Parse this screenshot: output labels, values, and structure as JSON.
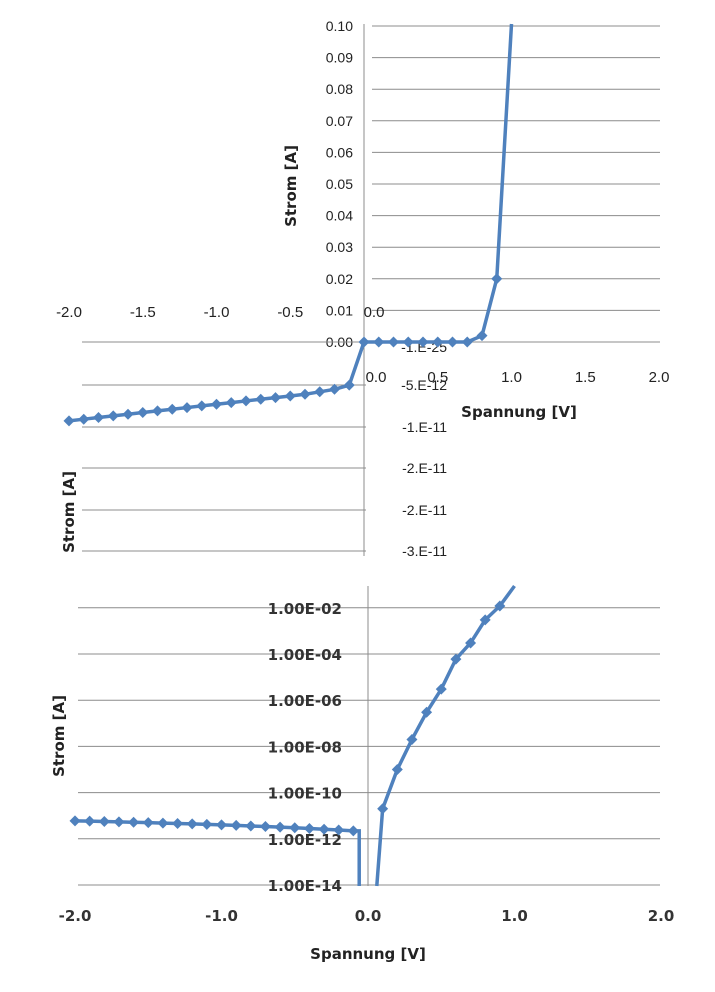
{
  "chart_data": [
    {
      "type": "line",
      "panel": "linear",
      "xlabel": "Spannung [V]",
      "ylabel_upper": "Strom [A]",
      "ylabel_lower": "Strom [A]",
      "xlim": [
        -2.0,
        2.0
      ],
      "ylim_upper": [
        0.0,
        0.1
      ],
      "x_tick_labels": [
        "-2.0",
        "-1.5",
        "-1.0",
        "-0.5",
        "0.0",
        "0.5",
        "1.0",
        "1.5",
        "2.0"
      ],
      "y_tick_labels_upper": [
        "0.00",
        "0.01",
        "0.02",
        "0.03",
        "0.04",
        "0.05",
        "0.06",
        "0.07",
        "0.08",
        "0.09",
        "0.10"
      ],
      "y_tick_labels_lower": [
        "-1.E-25",
        "-5.E-12",
        "-1.E-11",
        "-2.E-11",
        "-2.E-11",
        "-3.E-11"
      ],
      "grid": true,
      "color": "#4F81BD",
      "series": [
        {
          "x": [
            0.0,
            0.1,
            0.2,
            0.3,
            0.4,
            0.5,
            0.6,
            0.7,
            0.8,
            0.9,
            1.0
          ],
          "y": [
            0.0,
            0.0,
            0.0,
            0.0,
            0.0,
            0.0,
            0.0,
            0.0,
            0.002,
            0.02,
            0.15
          ]
        },
        {
          "x": [
            -2.0,
            -1.9,
            -1.8,
            -1.7,
            -1.6,
            -1.5,
            -1.4,
            -1.3,
            -1.2,
            -1.1,
            -1.0,
            -0.9,
            -0.8,
            -0.7,
            -0.6,
            -0.5,
            -0.4,
            -0.3,
            -0.2,
            -0.1,
            0.0
          ],
          "y": [
            -9.5e-12,
            -9.3e-12,
            -9.1e-12,
            -8.9e-12,
            -8.7e-12,
            -8.5e-12,
            -8.3e-12,
            -8.1e-12,
            -7.9e-12,
            -7.7e-12,
            -7.5e-12,
            -7.3e-12,
            -7.1e-12,
            -6.9e-12,
            -6.7e-12,
            -6.5e-12,
            -6.3e-12,
            -6e-12,
            -5.7e-12,
            -5.2e-12,
            0.0
          ]
        }
      ]
    },
    {
      "type": "line",
      "panel": "log",
      "xlabel": "Spannung [V]",
      "ylabel": "Strom [A]",
      "xlim": [
        -2.0,
        2.0
      ],
      "y_scale": "log",
      "ylim": [
        1e-14,
        0.1
      ],
      "x_tick_labels": [
        "-2.0",
        "-1.0",
        "0.0",
        "1.0",
        "2.0"
      ],
      "y_tick_labels": [
        "1.00E-14",
        "1.00E-12",
        "1.00E-10",
        "1.00E-08",
        "1.00E-06",
        "1.00E-04",
        "1.00E-02"
      ],
      "grid": true,
      "color": "#4F81BD",
      "series": [
        {
          "x": [
            -2.0,
            -1.9,
            -1.8,
            -1.7,
            -1.6,
            -1.5,
            -1.4,
            -1.3,
            -1.2,
            -1.1,
            -1.0,
            -0.9,
            -0.8,
            -0.7,
            -0.6,
            -0.5,
            -0.4,
            -0.3,
            -0.2,
            -0.1
          ],
          "y": [
            6e-12,
            5.8e-12,
            5.6e-12,
            5.4e-12,
            5.2e-12,
            5e-12,
            4.8e-12,
            4.6e-12,
            4.4e-12,
            4.2e-12,
            4e-12,
            3.8e-12,
            3.6e-12,
            3.4e-12,
            3.2e-12,
            3e-12,
            2.8e-12,
            2.6e-12,
            2.4e-12,
            2.2e-12
          ]
        },
        {
          "x": [
            0.1,
            0.2,
            0.3,
            0.4,
            0.5,
            0.6,
            0.7,
            0.8,
            0.9,
            1.0
          ],
          "y": [
            2e-11,
            1e-09,
            2e-08,
            3e-07,
            3e-06,
            6e-05,
            0.0003,
            0.003,
            0.012,
            0.1
          ]
        }
      ]
    }
  ]
}
